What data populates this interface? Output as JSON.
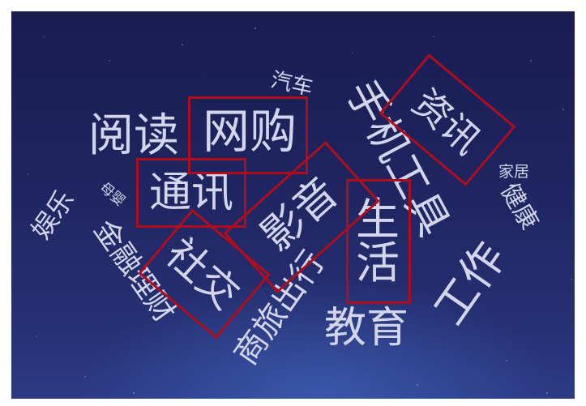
{
  "words": [
    {
      "id": "qiche",
      "text": "汽车"
    },
    {
      "id": "yuedu",
      "text": "阅读"
    },
    {
      "id": "wanggou",
      "text": "网购"
    },
    {
      "id": "shouji",
      "text": "手机工具"
    },
    {
      "id": "zixun",
      "text": "资讯"
    },
    {
      "id": "jiaju",
      "text": "家居"
    },
    {
      "id": "tongxun",
      "text": "通讯"
    },
    {
      "id": "muying",
      "text": "母婴"
    },
    {
      "id": "yule",
      "text": "娱乐"
    },
    {
      "id": "jinrong",
      "text": "金融理财"
    },
    {
      "id": "yingyin",
      "text": "影音"
    },
    {
      "id": "shenghuo",
      "text": "生活"
    },
    {
      "id": "jiankang",
      "text": "健康"
    },
    {
      "id": "shejiao",
      "text": "社交"
    },
    {
      "id": "shanglv",
      "text": "商旅出行"
    },
    {
      "id": "jiaoyu",
      "text": "教育"
    },
    {
      "id": "gongzuo",
      "text": "工作"
    }
  ],
  "highlighted": [
    "wanggou",
    "zixun",
    "tongxun",
    "yingyin",
    "shenghuo",
    "shejiao"
  ],
  "colors": {
    "text": "#d3d6ea",
    "highlight_border": "#b00d1c",
    "background_top": "#1a1c52",
    "background_bottom": "#2c3a86"
  }
}
